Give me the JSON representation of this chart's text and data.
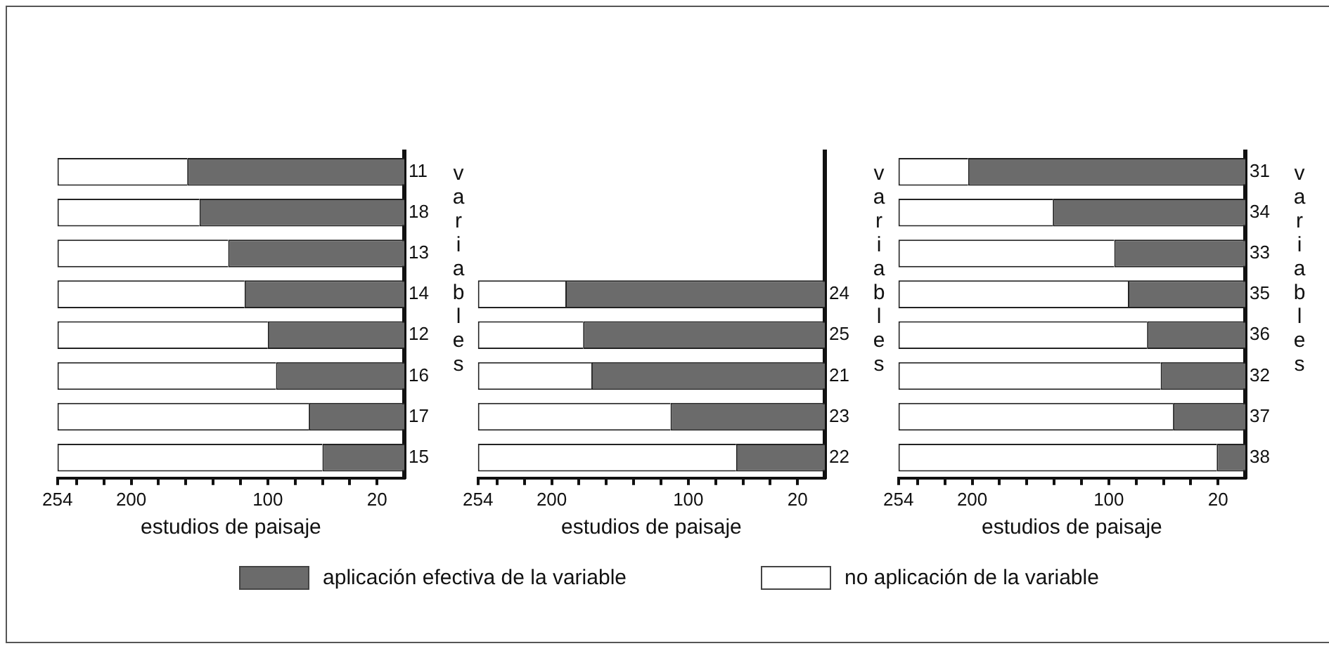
{
  "chart_data": [
    {
      "type": "bar",
      "orientation": "horizontal",
      "stacked": true,
      "xlabel": "estudios de paisaje",
      "ylabel": "variables",
      "legend": "bottom",
      "grid": false,
      "categories": [
        "11",
        "18",
        "13",
        "14",
        "12",
        "16",
        "17",
        "15"
      ],
      "xlim": [
        254,
        0
      ],
      "xticks": [
        254,
        {
          "value": 240,
          "label": null
        },
        {
          "value": 220,
          "label": null
        },
        200,
        {
          "value": 180,
          "label": null
        },
        {
          "value": 160,
          "label": null
        },
        {
          "value": 140,
          "label": null
        },
        {
          "value": 120,
          "label": null
        },
        100,
        {
          "value": 80,
          "label": null
        },
        {
          "value": 60,
          "label": null
        },
        {
          "value": 40,
          "label": null
        },
        20
      ],
      "series": [
        {
          "name": "aplicación efectiva de la variable",
          "color": "#6b6b6b",
          "values": [
            159,
            150,
            129,
            117,
            100,
            94,
            70,
            60
          ]
        },
        {
          "name": "no aplicación de la variable",
          "color": "#ffffff",
          "values": [
            95,
            104,
            125,
            137,
            154,
            160,
            184,
            194
          ]
        }
      ]
    },
    {
      "type": "bar",
      "orientation": "horizontal",
      "stacked": true,
      "xlabel": "estudios de paisaje",
      "ylabel": "variables",
      "grid": false,
      "categories": [
        null,
        null,
        null,
        "24",
        "25",
        "21",
        "23",
        "22"
      ],
      "xlim": [
        254,
        0
      ],
      "xticks": [
        254,
        {
          "value": 240,
          "label": null
        },
        {
          "value": 220,
          "label": null
        },
        200,
        {
          "value": 180,
          "label": null
        },
        {
          "value": 160,
          "label": null
        },
        {
          "value": 140,
          "label": null
        },
        {
          "value": 120,
          "label": null
        },
        100,
        {
          "value": 80,
          "label": null
        },
        {
          "value": 60,
          "label": null
        },
        {
          "value": 40,
          "label": null
        },
        20
      ],
      "series": [
        {
          "color": "#6b6b6b",
          "values": [
            null,
            null,
            null,
            190,
            177,
            171,
            113,
            65
          ]
        },
        {
          "color": "#ffffff",
          "values": [
            null,
            null,
            null,
            64,
            77,
            83,
            141,
            189
          ]
        }
      ]
    },
    {
      "type": "bar",
      "orientation": "horizontal",
      "stacked": true,
      "xlabel": "estudios de paisaje",
      "ylabel": "variables",
      "grid": false,
      "categories": [
        "31",
        "34",
        "33",
        "35",
        "36",
        "32",
        "37",
        "38"
      ],
      "xlim": [
        254,
        0
      ],
      "xticks": [
        254,
        {
          "value": 240,
          "label": null
        },
        {
          "value": 220,
          "label": null
        },
        200,
        {
          "value": 180,
          "label": null
        },
        {
          "value": 160,
          "label": null
        },
        {
          "value": 140,
          "label": null
        },
        {
          "value": 120,
          "label": null
        },
        100,
        {
          "value": 80,
          "label": null
        },
        {
          "value": 60,
          "label": null
        },
        {
          "value": 40,
          "label": null
        },
        20
      ],
      "series": [
        {
          "color": "#6b6b6b",
          "values": [
            203,
            141,
            96,
            86,
            72,
            62,
            53,
            21
          ]
        },
        {
          "color": "#ffffff",
          "values": [
            51,
            113,
            158,
            168,
            182,
            192,
            201,
            233
          ]
        }
      ]
    }
  ]
}
